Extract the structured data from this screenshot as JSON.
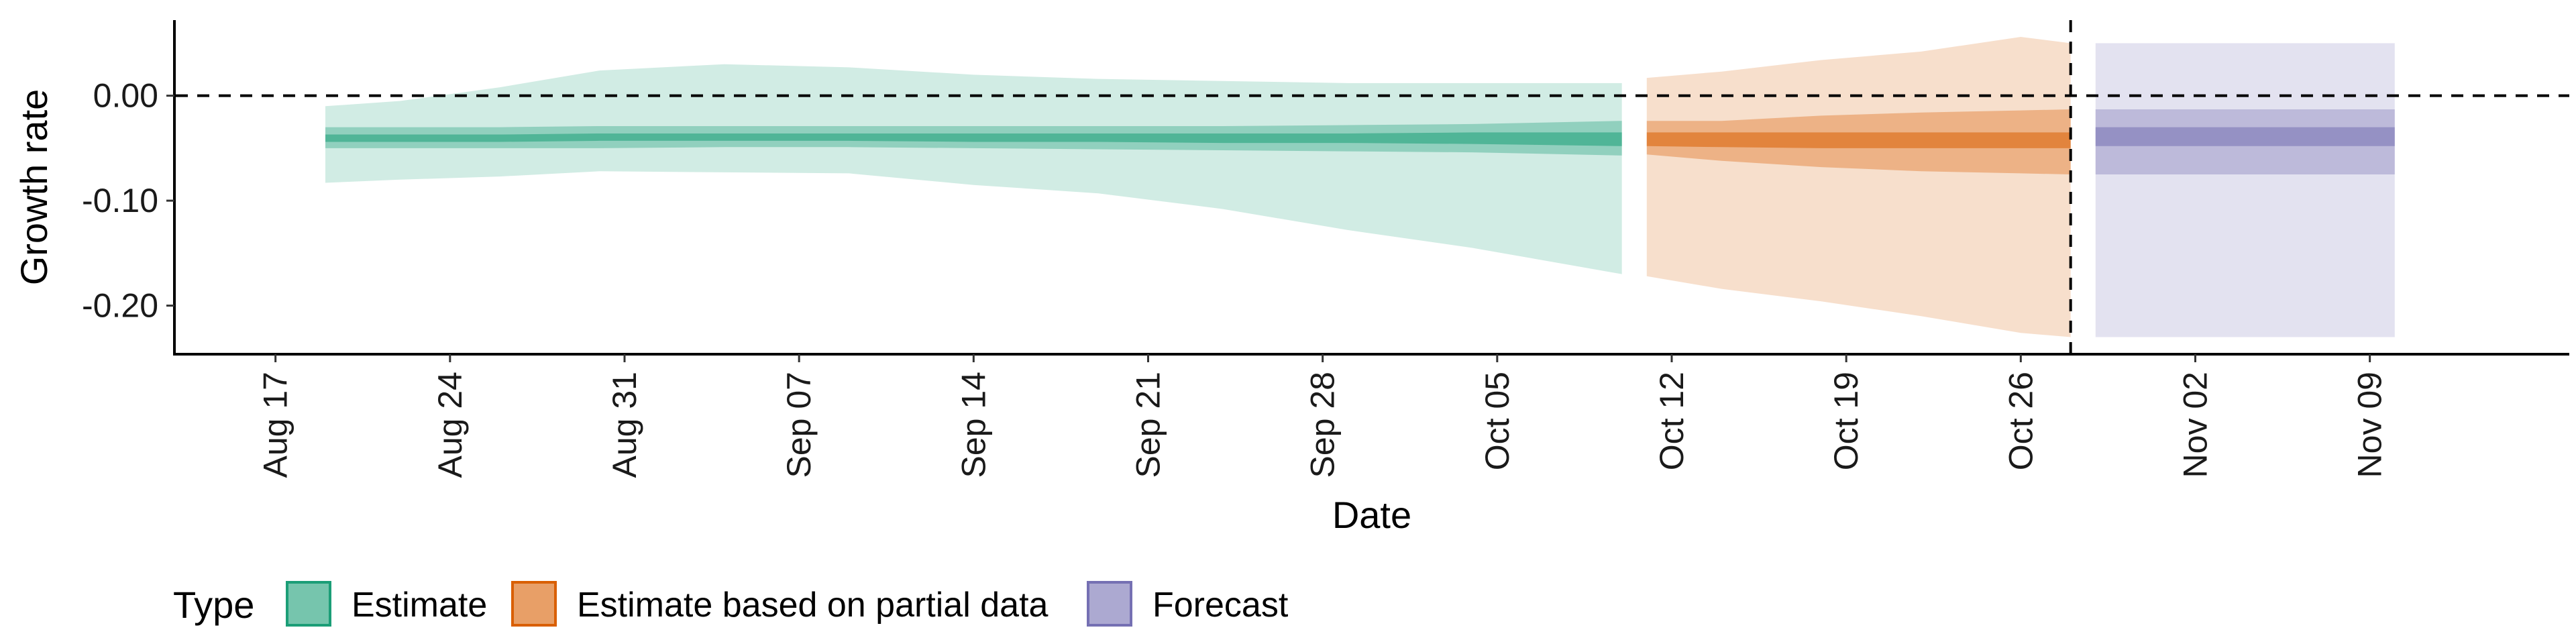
{
  "chart_data": {
    "type": "area",
    "xlabel": "Date",
    "ylabel": "Growth rate",
    "ylim": [
      -0.245,
      0.072
    ],
    "y_ticks": [
      {
        "value": 0.0,
        "label": "0.00"
      },
      {
        "value": -0.1,
        "label": "-0.10"
      },
      {
        "value": -0.2,
        "label": "-0.20"
      }
    ],
    "x_range": [
      "2020-08-13",
      "2020-11-17"
    ],
    "x_ticks": [
      {
        "date": "2020-08-17",
        "label": "Aug 17"
      },
      {
        "date": "2020-08-24",
        "label": "Aug 24"
      },
      {
        "date": "2020-08-31",
        "label": "Aug 31"
      },
      {
        "date": "2020-09-07",
        "label": "Sep 07"
      },
      {
        "date": "2020-09-14",
        "label": "Sep 14"
      },
      {
        "date": "2020-09-21",
        "label": "Sep 21"
      },
      {
        "date": "2020-09-28",
        "label": "Sep 28"
      },
      {
        "date": "2020-10-05",
        "label": "Oct 05"
      },
      {
        "date": "2020-10-12",
        "label": "Oct 12"
      },
      {
        "date": "2020-10-19",
        "label": "Oct 19"
      },
      {
        "date": "2020-10-26",
        "label": "Oct 26"
      },
      {
        "date": "2020-11-02",
        "label": "Nov 02"
      },
      {
        "date": "2020-11-09",
        "label": "Nov 09"
      }
    ],
    "reference_lines": {
      "horizontal_y": 0.0,
      "vertical_date": "2020-10-28"
    },
    "grid": false,
    "legend_position": "bottom-left",
    "legend_title": "Type",
    "series": [
      {
        "name": "Estimate",
        "color": "#1b9e77",
        "points": [
          {
            "date": "2020-08-19",
            "outer": [
              -0.083,
              -0.01
            ],
            "mid": [
              -0.05,
              -0.03
            ],
            "inner": [
              -0.044,
              -0.037
            ]
          },
          {
            "date": "2020-08-22",
            "outer": [
              -0.08,
              -0.005
            ],
            "mid": [
              -0.05,
              -0.03
            ],
            "inner": [
              -0.044,
              -0.037
            ]
          },
          {
            "date": "2020-08-26",
            "outer": [
              -0.077,
              0.008
            ],
            "mid": [
              -0.05,
              -0.03
            ],
            "inner": [
              -0.044,
              -0.037
            ]
          },
          {
            "date": "2020-08-30",
            "outer": [
              -0.072,
              0.024
            ],
            "mid": [
              -0.05,
              -0.029
            ],
            "inner": [
              -0.043,
              -0.036
            ]
          },
          {
            "date": "2020-09-04",
            "outer": [
              -0.073,
              0.03
            ],
            "mid": [
              -0.049,
              -0.029
            ],
            "inner": [
              -0.043,
              -0.036
            ]
          },
          {
            "date": "2020-09-09",
            "outer": [
              -0.074,
              0.027
            ],
            "mid": [
              -0.049,
              -0.029
            ],
            "inner": [
              -0.043,
              -0.036
            ]
          },
          {
            "date": "2020-09-14",
            "outer": [
              -0.085,
              0.02
            ],
            "mid": [
              -0.05,
              -0.029
            ],
            "inner": [
              -0.044,
              -0.036
            ]
          },
          {
            "date": "2020-09-19",
            "outer": [
              -0.093,
              0.016
            ],
            "mid": [
              -0.051,
              -0.029
            ],
            "inner": [
              -0.044,
              -0.036
            ]
          },
          {
            "date": "2020-09-24",
            "outer": [
              -0.108,
              0.014
            ],
            "mid": [
              -0.052,
              -0.029
            ],
            "inner": [
              -0.045,
              -0.036
            ]
          },
          {
            "date": "2020-09-29",
            "outer": [
              -0.128,
              0.012
            ],
            "mid": [
              -0.053,
              -0.028
            ],
            "inner": [
              -0.045,
              -0.036
            ]
          },
          {
            "date": "2020-10-04",
            "outer": [
              -0.145,
              0.012
            ],
            "mid": [
              -0.054,
              -0.027
            ],
            "inner": [
              -0.046,
              -0.035
            ]
          },
          {
            "date": "2020-10-10",
            "outer": [
              -0.17,
              0.012
            ],
            "mid": [
              -0.057,
              -0.024
            ],
            "inner": [
              -0.048,
              -0.035
            ]
          }
        ]
      },
      {
        "name": "Estimate based on partial data",
        "color": "#d95f02",
        "points": [
          {
            "date": "2020-10-11",
            "outer": [
              -0.172,
              0.017
            ],
            "mid": [
              -0.056,
              -0.024
            ],
            "inner": [
              -0.048,
              -0.035
            ]
          },
          {
            "date": "2020-10-14",
            "outer": [
              -0.184,
              0.023
            ],
            "mid": [
              -0.062,
              -0.024
            ],
            "inner": [
              -0.049,
              -0.035
            ]
          },
          {
            "date": "2020-10-18",
            "outer": [
              -0.196,
              0.034
            ],
            "mid": [
              -0.068,
              -0.019
            ],
            "inner": [
              -0.05,
              -0.035
            ]
          },
          {
            "date": "2020-10-22",
            "outer": [
              -0.21,
              0.042
            ],
            "mid": [
              -0.072,
              -0.016
            ],
            "inner": [
              -0.05,
              -0.035
            ]
          },
          {
            "date": "2020-10-26",
            "outer": [
              -0.226,
              0.056
            ],
            "mid": [
              -0.074,
              -0.014
            ],
            "inner": [
              -0.05,
              -0.035
            ]
          },
          {
            "date": "2020-10-28",
            "outer": [
              -0.23,
              0.05
            ],
            "mid": [
              -0.075,
              -0.013
            ],
            "inner": [
              -0.05,
              -0.035
            ]
          }
        ]
      },
      {
        "name": "Forecast",
        "color": "#7570b3",
        "points": [
          {
            "date": "2020-10-29",
            "outer": [
              -0.23,
              0.05
            ],
            "mid": [
              -0.075,
              -0.013
            ],
            "inner": [
              -0.048,
              -0.03
            ]
          },
          {
            "date": "2020-11-10",
            "outer": [
              -0.23,
              0.05
            ],
            "mid": [
              -0.075,
              -0.013
            ],
            "inner": [
              -0.048,
              -0.03
            ]
          }
        ]
      }
    ]
  }
}
